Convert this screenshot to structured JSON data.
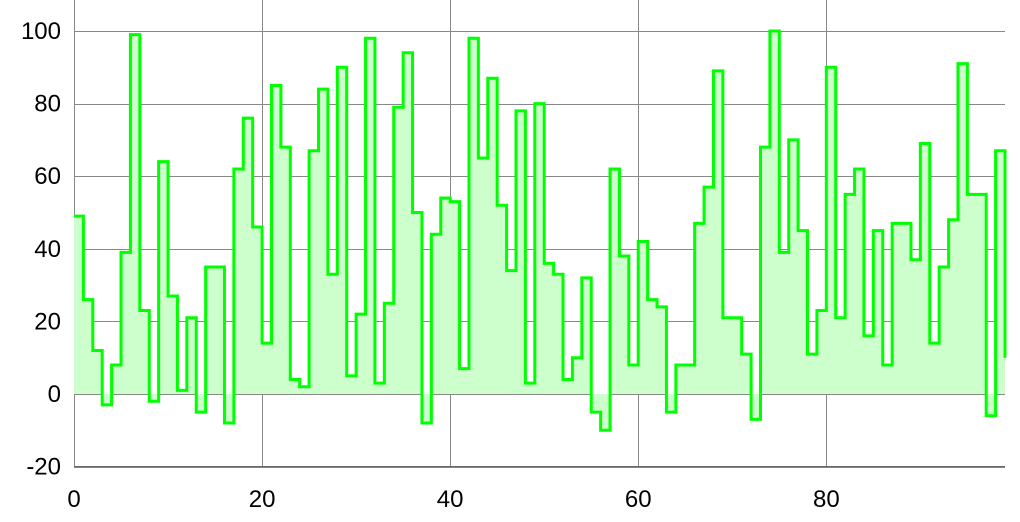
{
  "chart_data": {
    "type": "area",
    "step": true,
    "xlim": [
      0,
      99
    ],
    "ylim": [
      -20,
      100
    ],
    "xticks": [
      0,
      20,
      40,
      60,
      80
    ],
    "yticks": [
      -20,
      0,
      20,
      40,
      60,
      80,
      100
    ],
    "grid": true,
    "colors": {
      "line": "#00ff00",
      "fill": "#ccffcc",
      "grid": "#888888"
    },
    "series": [
      {
        "x": [
          0,
          1,
          2,
          3,
          4,
          5,
          6,
          7,
          8,
          9,
          10,
          11,
          12,
          13,
          14,
          15,
          16,
          17,
          18,
          19,
          20,
          21,
          22,
          23,
          24,
          25,
          26,
          27,
          28,
          29,
          30,
          31,
          32,
          33,
          34,
          35,
          36,
          37,
          38,
          39,
          40,
          41,
          42,
          43,
          44,
          45,
          46,
          47,
          48,
          49,
          50,
          51,
          52,
          53,
          54,
          55,
          56,
          57,
          58,
          59,
          60,
          61,
          62,
          63,
          64,
          65,
          66,
          67,
          68,
          69,
          70,
          71,
          72,
          73,
          74,
          75,
          76,
          77,
          78,
          79,
          80,
          81,
          82,
          83,
          84,
          85,
          86,
          87,
          88,
          89,
          90,
          91,
          92,
          93,
          94,
          95,
          96,
          97,
          98,
          99
        ],
        "y": [
          49,
          26,
          12,
          -3,
          8,
          39,
          99,
          23,
          -2,
          64,
          27,
          1,
          21,
          -5,
          35,
          35,
          -8,
          62,
          76,
          46,
          14,
          85,
          68,
          4,
          2,
          67,
          84,
          33,
          90,
          5,
          22,
          98,
          3,
          25,
          79,
          94,
          50,
          -8,
          44,
          54,
          53,
          7,
          98,
          65,
          87,
          52,
          34,
          78,
          3,
          80,
          36,
          33,
          4,
          10,
          32,
          -5,
          -10,
          62,
          38,
          8,
          42,
          26,
          24,
          -5,
          8,
          8,
          47,
          57,
          89,
          21,
          21,
          11,
          -7,
          68,
          100,
          39,
          70,
          45,
          11,
          23,
          90,
          21,
          55,
          62,
          16,
          45,
          8,
          47,
          47,
          37,
          69,
          14,
          35,
          48,
          91,
          55,
          55,
          -6,
          67,
          10
        ]
      }
    ]
  }
}
